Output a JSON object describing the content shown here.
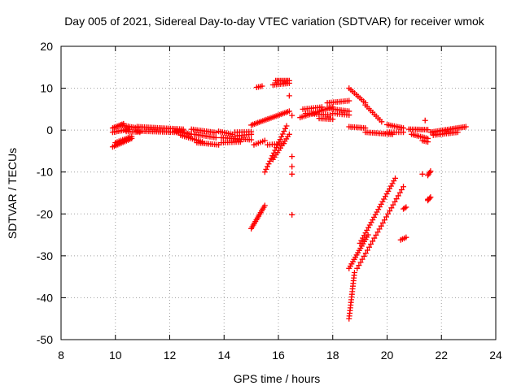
{
  "chart_data": {
    "type": "scatter",
    "title": "Day 005 of 2021, Sidereal Day-to-day VTEC variation (SDTVAR) for receiver wmok",
    "xlabel": "GPS time / hours",
    "ylabel": "SDTVAR / TECUs",
    "xlim": [
      8,
      24
    ],
    "ylim": [
      -50,
      20
    ],
    "xticks": [
      8,
      10,
      12,
      14,
      16,
      18,
      20,
      22,
      24
    ],
    "yticks": [
      -50,
      -40,
      -30,
      -20,
      -10,
      0,
      10,
      20
    ],
    "grid": true,
    "marker": "+",
    "series_color": "#ff0000",
    "segments": [
      {
        "from": [
          9.9,
          0.5
        ],
        "to": [
          10.3,
          1.5
        ],
        "n": 8
      },
      {
        "from": [
          9.9,
          -0.5
        ],
        "to": [
          10.5,
          0.2
        ],
        "n": 10
      },
      {
        "from": [
          9.9,
          -4
        ],
        "to": [
          10.6,
          -2
        ],
        "n": 12
      },
      {
        "from": [
          10.0,
          -3
        ],
        "to": [
          10.6,
          -1.5
        ],
        "n": 10
      },
      {
        "from": [
          10.2,
          1.2
        ],
        "to": [
          10.8,
          0.5
        ],
        "n": 10
      },
      {
        "from": [
          10.4,
          -0.3
        ],
        "to": [
          10.9,
          -0.5
        ],
        "n": 8
      },
      {
        "from": [
          10.8,
          0.8
        ],
        "to": [
          12.5,
          0.2
        ],
        "n": 26
      },
      {
        "from": [
          10.8,
          -0.2
        ],
        "to": [
          12.6,
          -0.6
        ],
        "n": 26
      },
      {
        "from": [
          12.2,
          -0.2
        ],
        "to": [
          12.8,
          -1.0
        ],
        "n": 10
      },
      {
        "from": [
          12.4,
          -1.2
        ],
        "to": [
          13.2,
          -2.8
        ],
        "n": 12
      },
      {
        "from": [
          12.8,
          0.2
        ],
        "to": [
          13.7,
          -0.6
        ],
        "n": 14
      },
      {
        "from": [
          12.9,
          -1.0
        ],
        "to": [
          13.7,
          -1.8
        ],
        "n": 12
      },
      {
        "from": [
          13.0,
          -3.0
        ],
        "to": [
          13.8,
          -3.5
        ],
        "n": 12
      },
      {
        "from": [
          13.8,
          -0.3
        ],
        "to": [
          14.3,
          -1.0
        ],
        "n": 8
      },
      {
        "from": [
          13.9,
          -1.8
        ],
        "to": [
          15.0,
          -2.3
        ],
        "n": 16
      },
      {
        "from": [
          13.9,
          -3.0
        ],
        "to": [
          14.6,
          -2.8
        ],
        "n": 10
      },
      {
        "from": [
          14.4,
          -0.5
        ],
        "to": [
          15.0,
          -0.4
        ],
        "n": 8
      },
      {
        "from": [
          14.4,
          -1.4
        ],
        "to": [
          15.0,
          -1.0
        ],
        "n": 8
      },
      {
        "from": [
          15.0,
          1.2
        ],
        "to": [
          16.4,
          4.5
        ],
        "n": 24
      },
      {
        "from": [
          15.1,
          -3.5
        ],
        "to": [
          15.5,
          -2.5
        ],
        "n": 6
      },
      {
        "from": [
          15.0,
          -23.5
        ],
        "to": [
          15.5,
          -18
        ],
        "n": 14
      },
      {
        "from": [
          15.5,
          -10
        ],
        "to": [
          16.3,
          1.0
        ],
        "n": 18
      },
      {
        "from": [
          15.8,
          -7
        ],
        "to": [
          16.4,
          -1.0
        ],
        "n": 12
      },
      {
        "from": [
          15.6,
          -3.5
        ],
        "to": [
          16.2,
          -3.2
        ],
        "n": 8
      },
      {
        "from": [
          15.2,
          10.2
        ],
        "to": [
          15.4,
          10.5
        ],
        "n": 4
      },
      {
        "from": [
          15.9,
          11.8
        ],
        "to": [
          16.4,
          11.8
        ],
        "n": 10
      },
      {
        "from": [
          15.8,
          10.8
        ],
        "to": [
          16.4,
          11.2
        ],
        "n": 10
      },
      {
        "from": [
          16.8,
          3.0
        ],
        "to": [
          18.0,
          5.5
        ],
        "n": 18
      },
      {
        "from": [
          16.9,
          5.0
        ],
        "to": [
          17.6,
          5.5
        ],
        "n": 10
      },
      {
        "from": [
          17.0,
          4.0
        ],
        "to": [
          17.9,
          3.6
        ],
        "n": 12
      },
      {
        "from": [
          17.5,
          2.8
        ],
        "to": [
          18.0,
          2.6
        ],
        "n": 8
      },
      {
        "from": [
          17.8,
          6.5
        ],
        "to": [
          18.6,
          7.0
        ],
        "n": 12
      },
      {
        "from": [
          17.8,
          5.2
        ],
        "to": [
          18.6,
          4.5
        ],
        "n": 12
      },
      {
        "from": [
          18.0,
          4.0
        ],
        "to": [
          18.6,
          3.6
        ],
        "n": 8
      },
      {
        "from": [
          18.6,
          10
        ],
        "to": [
          19.2,
          6.5
        ],
        "n": 10
      },
      {
        "from": [
          19.2,
          6.0
        ],
        "to": [
          19.8,
          2.0
        ],
        "n": 10
      },
      {
        "from": [
          18.6,
          0.8
        ],
        "to": [
          19.2,
          0.5
        ],
        "n": 10
      },
      {
        "from": [
          19.2,
          -0.5
        ],
        "to": [
          20.2,
          -1.0
        ],
        "n": 16
      },
      {
        "from": [
          18.6,
          -45
        ],
        "to": [
          18.8,
          -34
        ],
        "n": 18
      },
      {
        "from": [
          18.6,
          -33
        ],
        "to": [
          19.3,
          -25
        ],
        "n": 16
      },
      {
        "from": [
          19.0,
          -27
        ],
        "to": [
          20.3,
          -11.5
        ],
        "n": 26
      },
      {
        "from": [
          18.9,
          -33
        ],
        "to": [
          20.6,
          -13.5
        ],
        "n": 28
      },
      {
        "from": [
          20.0,
          1.3
        ],
        "to": [
          20.6,
          0.5
        ],
        "n": 10
      },
      {
        "from": [
          20.0,
          -0.5
        ],
        "to": [
          20.6,
          -0.5
        ],
        "n": 8
      },
      {
        "from": [
          20.8,
          0.2
        ],
        "to": [
          21.5,
          0.1
        ],
        "n": 12
      },
      {
        "from": [
          20.9,
          -1.0
        ],
        "to": [
          21.5,
          -2.0
        ],
        "n": 10
      },
      {
        "from": [
          21.3,
          -2.5
        ],
        "to": [
          21.5,
          -2.8
        ],
        "n": 4
      },
      {
        "from": [
          21.5,
          -10.8
        ],
        "to": [
          21.6,
          -9.8
        ],
        "n": 4
      },
      {
        "from": [
          21.5,
          -16.8
        ],
        "to": [
          21.6,
          -16
        ],
        "n": 4
      },
      {
        "from": [
          21.6,
          -0.5
        ],
        "to": [
          22.9,
          0.8
        ],
        "n": 22
      },
      {
        "from": [
          21.7,
          -1.2
        ],
        "to": [
          22.6,
          -0.5
        ],
        "n": 14
      },
      {
        "from": [
          20.5,
          -26.2
        ],
        "to": [
          20.7,
          -25.6
        ],
        "n": 4
      },
      {
        "from": [
          20.6,
          -18.8
        ],
        "to": [
          20.7,
          -18.4
        ],
        "n": 3
      }
    ],
    "points": [
      [
        16.4,
        8.2
      ],
      [
        16.5,
        3.5
      ],
      [
        16.5,
        -6.3
      ],
      [
        16.5,
        -8.7
      ],
      [
        16.5,
        -10.5
      ],
      [
        16.5,
        -20.2
      ],
      [
        21.4,
        2.3
      ],
      [
        21.3,
        -10.5
      ],
      [
        21.5,
        -16.5
      ]
    ]
  }
}
